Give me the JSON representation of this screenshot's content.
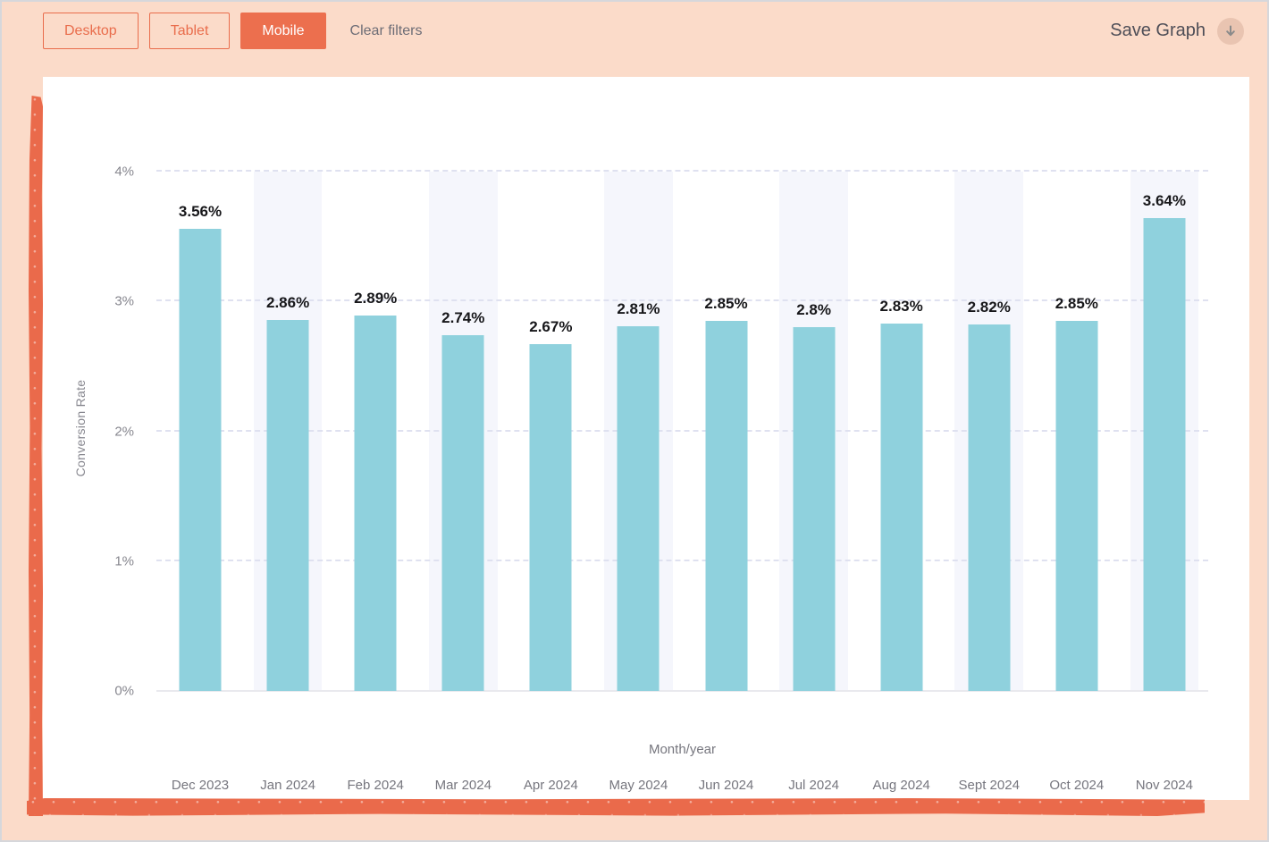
{
  "toolbar": {
    "filter_buttons": [
      {
        "label": "Desktop",
        "active": false
      },
      {
        "label": "Tablet",
        "active": false
      },
      {
        "label": "Mobile",
        "active": true
      }
    ],
    "clear_filters_label": "Clear filters",
    "save_graph_label": "Save Graph"
  },
  "icons": {
    "download_icon": "download-arrow"
  },
  "colors": {
    "accent_orange": "#EC6F4E",
    "page_peach": "#FBDBC9",
    "bar_blue": "#8FD1DD",
    "column_stripe": "#F5F6FC",
    "gridline": "#DFE1F0",
    "axis_text": "#87878F",
    "data_label_text": "#17171A"
  },
  "chart_data": {
    "type": "bar",
    "title": "",
    "xlabel": "Month/year",
    "ylabel": "Conversion Rate",
    "categories": [
      "Dec 2023",
      "Jan 2024",
      "Feb 2024",
      "Mar 2024",
      "Apr 2024",
      "May 2024",
      "Jun 2024",
      "Jul 2024",
      "Aug 2024",
      "Sept 2024",
      "Oct 2024",
      "Nov 2024"
    ],
    "values": [
      3.56,
      2.86,
      2.89,
      2.74,
      2.67,
      2.81,
      2.85,
      2.8,
      2.83,
      2.82,
      2.85,
      3.64
    ],
    "bar_labels": [
      "3.56%",
      "2.86%",
      "2.89%",
      "2.74%",
      "2.67%",
      "2.81%",
      "2.85%",
      "2.8%",
      "2.83%",
      "2.82%",
      "2.85%",
      "3.64%"
    ],
    "ylim": [
      0,
      4
    ],
    "yticks": [
      "0%",
      "1%",
      "2%",
      "3%",
      "4%"
    ],
    "grid": "horizontal-dashed",
    "legend": "none",
    "striped_column_indices": [
      1,
      3,
      5,
      7,
      9,
      11
    ]
  }
}
